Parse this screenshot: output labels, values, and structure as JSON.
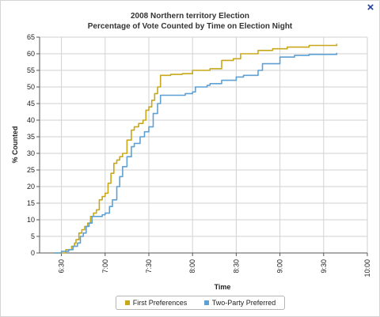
{
  "window": {
    "close_symbol": "×"
  },
  "chart_data": {
    "type": "line",
    "title": "2008 Northern territory Election",
    "subtitle": "Percentage of Vote Counted by Time on Election Night",
    "xlabel": "Time",
    "ylabel": "% Counted",
    "xlim": [
      "6:15",
      "10:00"
    ],
    "ylim": [
      0,
      65
    ],
    "xticks": [
      "6:30",
      "7:00",
      "7:30",
      "8:00",
      "8:30",
      "9:00",
      "9:30",
      "10:00"
    ],
    "yticks": [
      0,
      5,
      10,
      15,
      20,
      25,
      30,
      35,
      40,
      45,
      50,
      55,
      60,
      65
    ],
    "grid": true,
    "legend_position": "bottom",
    "series": [
      {
        "name": "First Preferences",
        "color": "#c8a81a",
        "x": [
          "6:25",
          "6:33",
          "6:37",
          "6:39",
          "6:40",
          "6:42",
          "6:44",
          "6:46",
          "6:48",
          "6:50",
          "6:52",
          "6:54",
          "6:56",
          "6:58",
          "7:00",
          "7:02",
          "7:04",
          "7:06",
          "7:08",
          "7:10",
          "7:12",
          "7:15",
          "7:18",
          "7:20",
          "7:23",
          "7:26",
          "7:28",
          "7:30",
          "7:32",
          "7:34",
          "7:36",
          "7:38",
          "7:45",
          "7:53",
          "7:58",
          "8:00",
          "8:08",
          "8:12",
          "8:20",
          "8:28",
          "8:33",
          "8:45",
          "8:55",
          "9:05",
          "9:20",
          "9:39"
        ],
        "values": [
          0,
          1,
          2,
          3,
          4,
          6,
          7,
          8,
          9,
          11,
          12,
          13,
          16,
          17,
          18,
          21,
          24,
          27,
          28,
          29,
          30,
          34,
          37,
          38,
          39,
          40,
          43,
          44,
          46,
          48,
          50,
          53.5,
          53.8,
          54,
          54,
          55,
          55,
          55.5,
          58,
          58.5,
          60,
          61,
          61.5,
          62,
          62.5,
          63
        ]
      },
      {
        "name": "Two-Party Preferred",
        "color": "#5ea0d4",
        "x": [
          "6:25",
          "6:30",
          "6:35",
          "6:38",
          "6:41",
          "6:43",
          "6:45",
          "6:47",
          "6:49",
          "6:51",
          "6:55",
          "6:58",
          "7:00",
          "7:03",
          "7:05",
          "7:08",
          "7:10",
          "7:12",
          "7:15",
          "7:18",
          "7:20",
          "7:24",
          "7:27",
          "7:30",
          "7:33",
          "7:36",
          "7:38",
          "7:45",
          "7:55",
          "8:00",
          "8:02",
          "8:10",
          "8:12",
          "8:20",
          "8:30",
          "8:35",
          "8:45",
          "8:48",
          "9:00",
          "9:10",
          "9:20",
          "9:39"
        ],
        "values": [
          0,
          0.5,
          1,
          2,
          3,
          5,
          6,
          8,
          9,
          11,
          11,
          11.5,
          12,
          14,
          16,
          20,
          23,
          26,
          29,
          32,
          33,
          35,
          36.5,
          38,
          42,
          45,
          47.5,
          47.5,
          48,
          48.5,
          50,
          50.5,
          51,
          52,
          53,
          53.5,
          55,
          57,
          59,
          59.5,
          59.8,
          60.3
        ]
      }
    ]
  }
}
